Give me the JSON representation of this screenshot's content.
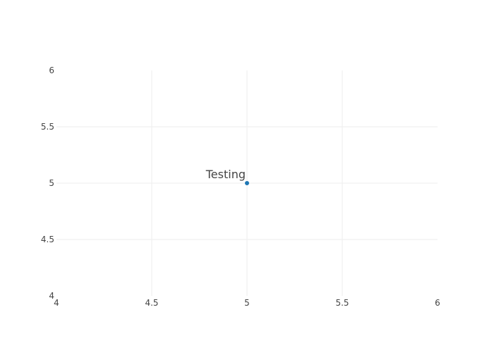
{
  "chart_data": {
    "type": "scatter",
    "points": [
      {
        "x": 5,
        "y": 5,
        "label": "Testing"
      }
    ],
    "xlim": [
      4,
      6
    ],
    "ylim": [
      4,
      6
    ],
    "x_ticks": [
      "4",
      "4.5",
      "5",
      "5.5",
      "6"
    ],
    "y_ticks": [
      "4",
      "4.5",
      "5",
      "5.5",
      "6"
    ],
    "grid": true,
    "colors": {
      "marker": "#1f77b4",
      "grid": "#eeeeee",
      "tick_text": "#444444",
      "label_text": "#444444"
    }
  }
}
